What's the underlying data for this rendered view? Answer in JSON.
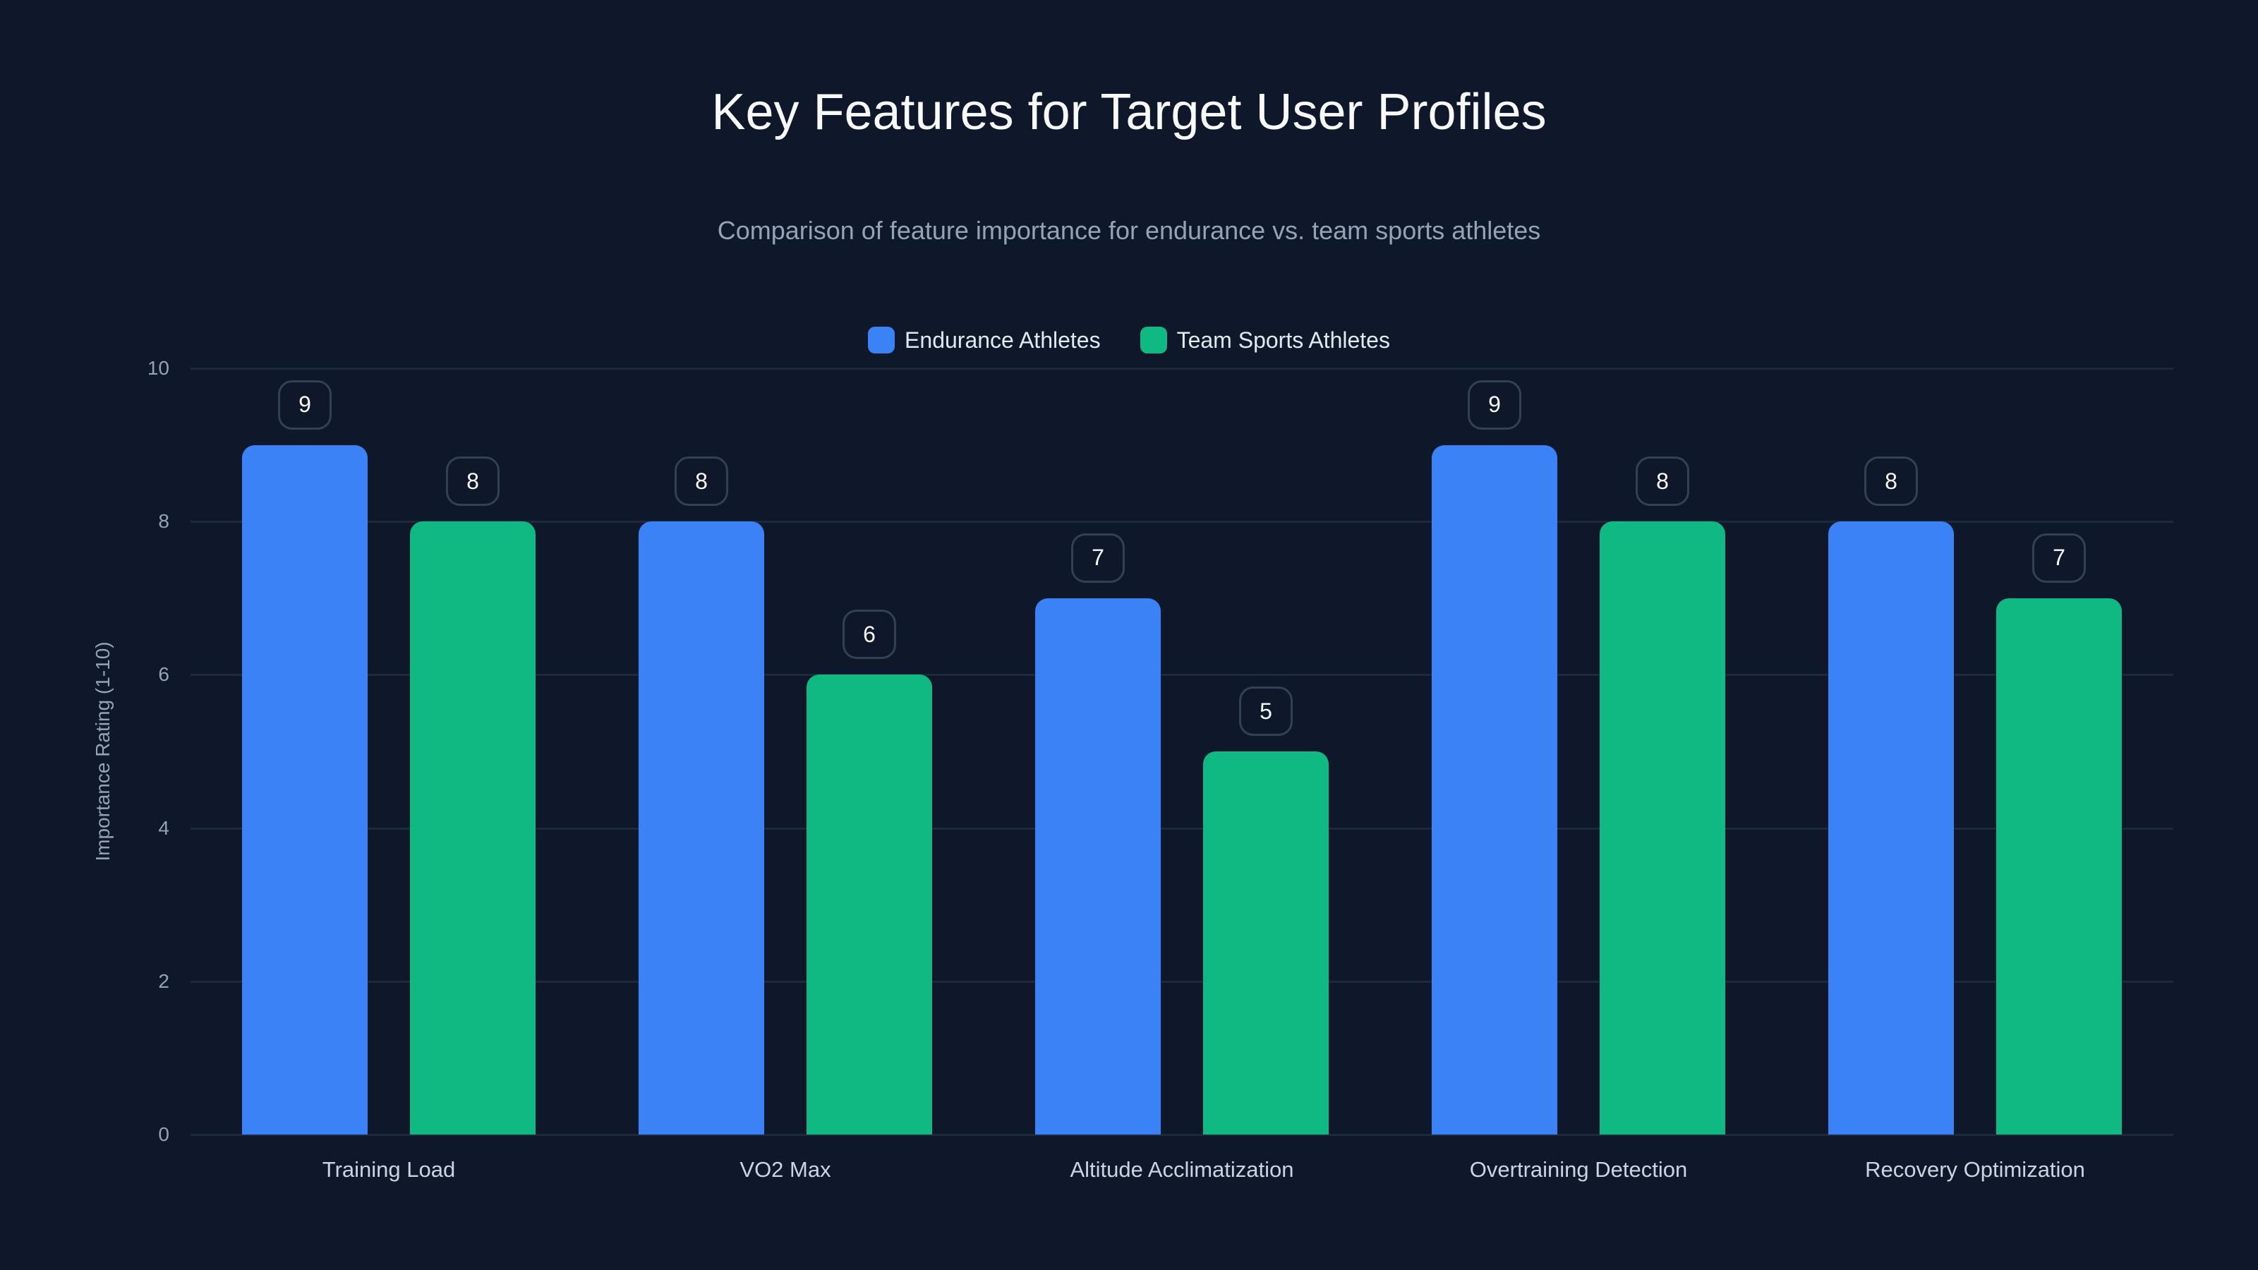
{
  "header": {
    "title": "Key Features for Target User Profiles",
    "subtitle": "Comparison of feature importance for endurance vs. team sports athletes"
  },
  "legend": [
    {
      "label": "Endurance Athletes",
      "color": "#3b82f6"
    },
    {
      "label": "Team Sports Athletes",
      "color": "#10b981"
    }
  ],
  "axis": {
    "ylabel": "Importance Rating (1-10)",
    "yticks": [
      "0",
      "2",
      "4",
      "6",
      "8",
      "10"
    ]
  },
  "chart_data": {
    "type": "bar",
    "title": "Key Features for Target User Profiles",
    "subtitle": "Comparison of feature importance for endurance vs. team sports athletes",
    "xlabel": "",
    "ylabel": "Importance Rating (1-10)",
    "ylim": [
      0,
      10
    ],
    "yticks": [
      0,
      2,
      4,
      6,
      8,
      10
    ],
    "grid": true,
    "legend_position": "top",
    "categories": [
      "Training Load",
      "VO2 Max",
      "Altitude Acclimatization",
      "Overtraining Detection",
      "Recovery Optimization"
    ],
    "series": [
      {
        "name": "Endurance Athletes",
        "color": "#3b82f6",
        "values": [
          9,
          8,
          7,
          9,
          8
        ]
      },
      {
        "name": "Team Sports Athletes",
        "color": "#10b981",
        "values": [
          8,
          6,
          5,
          8,
          7
        ]
      }
    ]
  }
}
